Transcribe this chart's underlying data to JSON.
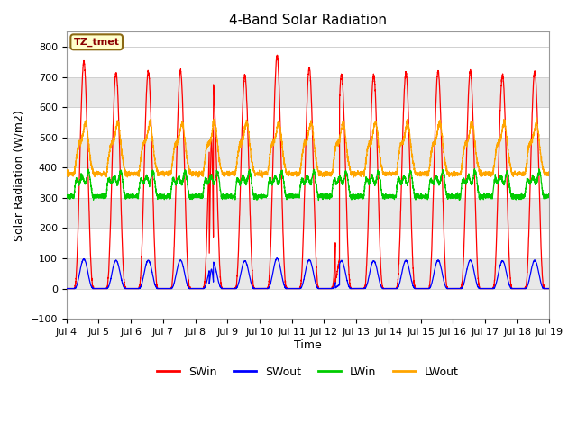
{
  "title": "4-Band Solar Radiation",
  "ylabel": "Solar Radiation (W/m2)",
  "xlabel": "Time",
  "annotation": "TZ_tmet",
  "ylim": [
    -100,
    850
  ],
  "xlim": [
    0,
    360
  ],
  "x_tick_labels": [
    "Jul 4",
    "Jul 5",
    "Jul 6",
    "Jul 7",
    "Jul 8",
    "Jul 9",
    "Jul 10",
    "Jul 11",
    "Jul 12",
    "Jul 13",
    "Jul 14",
    "Jul 15",
    "Jul 16",
    "Jul 17",
    "Jul 18",
    "Jul 19"
  ],
  "x_tick_positions": [
    0,
    24,
    48,
    72,
    96,
    120,
    144,
    168,
    192,
    216,
    240,
    264,
    288,
    312,
    336,
    360
  ],
  "colors": {
    "SWin": "#ff0000",
    "SWout": "#0000ff",
    "LWin": "#00cc00",
    "LWout": "#ffa500"
  },
  "grid_color": "#d0d0d0",
  "bg_color": "#e8e8e8",
  "num_days": 15,
  "annotation_box_color": "#ffffcc",
  "annotation_text_color": "#8b0000",
  "annotation_border_color": "#8b6914",
  "sw_peak_vals": [
    750,
    715,
    718,
    720,
    690,
    705,
    770,
    730,
    708,
    706,
    714,
    718,
    719,
    706,
    718
  ],
  "sw_peak2_day": [
    4,
    8
  ],
  "lw_night_base": 380,
  "lw_day_peak_add": 150,
  "lwin_night_base": 310,
  "lwin_day_peak_add": 60
}
